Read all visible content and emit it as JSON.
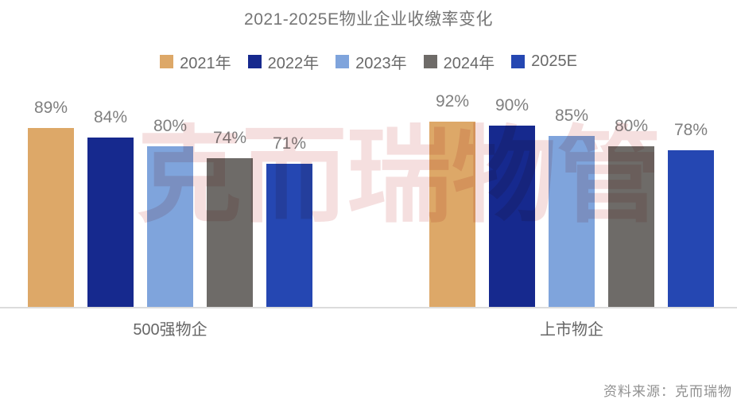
{
  "chart": {
    "title": "2021-2025E物业企业收缴率变化"
  },
  "chart_data": {
    "type": "bar",
    "title": "2021-2025E物业企业收缴率变化",
    "categories": [
      "500强物企",
      "上市物企"
    ],
    "series": [
      {
        "name": "2021年",
        "color": "#DDA868",
        "values": [
          89,
          92
        ]
      },
      {
        "name": "2022年",
        "color": "#16298E",
        "values": [
          84,
          90
        ]
      },
      {
        "name": "2023年",
        "color": "#7FA4DC",
        "values": [
          80,
          85
        ]
      },
      {
        "name": "2024年",
        "color": "#6E6B68",
        "values": [
          74,
          80
        ]
      },
      {
        "name": "2025E",
        "color": "#2547B2",
        "values": [
          71,
          78
        ]
      }
    ],
    "value_suffix": "%",
    "ylim": [
      0,
      100
    ],
    "grid": false,
    "legend_position": "top",
    "data_labels": true
  },
  "watermark": {
    "text": "克而瑞物管",
    "color": "#D98C8C"
  },
  "source": {
    "text": "资料来源：克而瑞物"
  }
}
